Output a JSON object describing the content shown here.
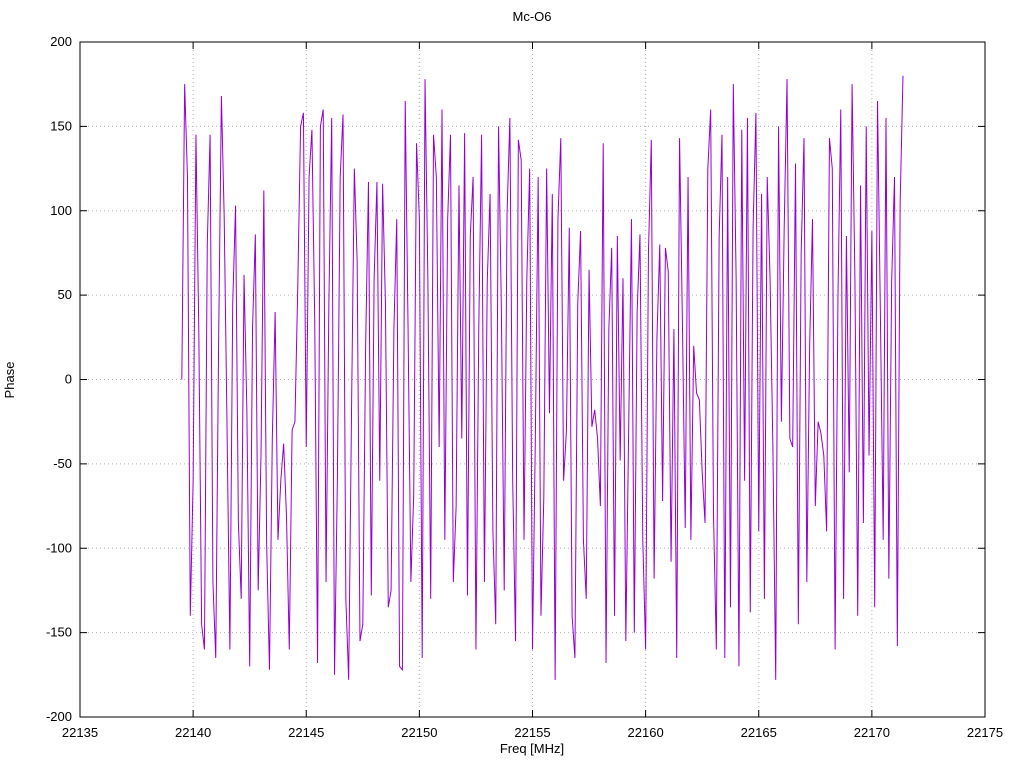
{
  "title": "Mc-O6",
  "chart_data": {
    "type": "line",
    "title": "Mc-O6",
    "xlabel": "Freq [MHz]",
    "ylabel": "Phase",
    "xlim": [
      22135,
      22175
    ],
    "ylim": [
      -200,
      200
    ],
    "x_ticks": [
      22135,
      22140,
      22145,
      22150,
      22155,
      22160,
      22165,
      22170,
      22175
    ],
    "y_ticks": [
      -200,
      -150,
      -100,
      -50,
      0,
      50,
      100,
      150,
      200
    ],
    "grid": true,
    "legend": "none",
    "line_color": "#9400d3",
    "grid_color": "#b4b4b4",
    "axis_color": "#000000",
    "series": [
      {
        "name": "Mc-O6",
        "x_start": 22139.5,
        "x_step": 0.125,
        "phase": [
          0,
          175,
          120,
          -140,
          -60,
          145,
          30,
          -145,
          -160,
          80,
          145,
          -120,
          -165,
          20,
          168,
          95,
          -30,
          -160,
          45,
          103,
          -85,
          -130,
          62,
          -18,
          -170,
          30,
          86,
          -125,
          -45,
          112,
          -98,
          -172,
          -35,
          40,
          -95,
          -60,
          -38,
          -80,
          -160,
          -30,
          -25,
          55,
          150,
          158,
          -40,
          120,
          148,
          35,
          -168,
          150,
          160,
          -120,
          45,
          155,
          -175,
          -60,
          120,
          157,
          -130,
          -178,
          -20,
          125,
          70,
          -155,
          -145,
          20,
          117,
          -128,
          60,
          117,
          -60,
          116,
          45,
          -135,
          -125,
          30,
          95,
          -170,
          -172,
          165,
          30,
          -120,
          -68,
          140,
          95,
          -165,
          178,
          60,
          -130,
          145,
          120,
          -40,
          160,
          -95,
          95,
          145,
          -120,
          -75,
          115,
          -35,
          146,
          -128,
          85,
          120,
          -160,
          30,
          145,
          -120,
          58,
          110,
          -90,
          -145,
          150,
          40,
          -125,
          98,
          155,
          -60,
          -155,
          142,
          130,
          -95,
          60,
          125,
          -160,
          -35,
          120,
          -140,
          -70,
          125,
          -20,
          110,
          -178,
          95,
          143,
          -60,
          -30,
          90,
          -140,
          -165,
          45,
          88,
          -95,
          -130,
          65,
          -28,
          -18,
          -35,
          -75,
          140,
          -168,
          30,
          78,
          -140,
          85,
          -48,
          60,
          -155,
          -30,
          95,
          -150,
          40,
          86,
          -95,
          -160,
          75,
          142,
          -118,
          25,
          80,
          -72,
          78,
          64,
          -108,
          30,
          -165,
          143,
          35,
          -88,
          120,
          -95,
          20,
          -8,
          -12,
          -55,
          -85,
          125,
          160,
          -80,
          -160,
          85,
          145,
          -165,
          120,
          -135,
          175,
          60,
          -170,
          148,
          -60,
          155,
          -138,
          90,
          158,
          -90,
          110,
          -130,
          120,
          60,
          -40,
          -178,
          150,
          -25,
          90,
          178,
          -35,
          -40,
          128,
          -145,
          75,
          143,
          -120,
          20,
          95,
          -75,
          -25,
          -32,
          -45,
          -90,
          143,
          125,
          -160,
          48,
          160,
          -130,
          85,
          -55,
          175,
          60,
          -140,
          115,
          -85,
          150,
          -45,
          88,
          -135,
          165,
          40,
          -95,
          155,
          -118,
          58,
          120,
          -158,
          105,
          180
        ]
      }
    ]
  }
}
